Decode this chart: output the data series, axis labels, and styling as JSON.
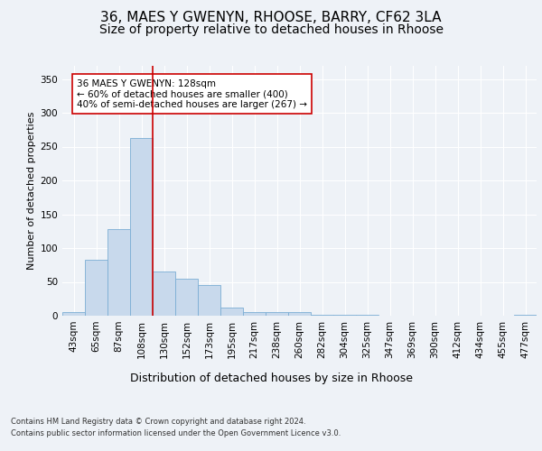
{
  "title1": "36, MAES Y GWENYN, RHOOSE, BARRY, CF62 3LA",
  "title2": "Size of property relative to detached houses in Rhoose",
  "xlabel": "Distribution of detached houses by size in Rhoose",
  "ylabel": "Number of detached properties",
  "footnote1": "Contains HM Land Registry data © Crown copyright and database right 2024.",
  "footnote2": "Contains public sector information licensed under the Open Government Licence v3.0.",
  "categories": [
    "43sqm",
    "65sqm",
    "87sqm",
    "108sqm",
    "130sqm",
    "152sqm",
    "173sqm",
    "195sqm",
    "217sqm",
    "238sqm",
    "260sqm",
    "282sqm",
    "304sqm",
    "325sqm",
    "347sqm",
    "369sqm",
    "390sqm",
    "412sqm",
    "434sqm",
    "455sqm",
    "477sqm"
  ],
  "values": [
    5,
    83,
    128,
    263,
    65,
    55,
    45,
    12,
    6,
    5,
    5,
    1,
    1,
    1,
    0,
    0,
    0,
    0,
    0,
    0,
    2
  ],
  "bar_color": "#c8d9ec",
  "bar_edge_color": "#7badd4",
  "vline_color": "#cc0000",
  "annotation_text": "36 MAES Y GWENYN: 128sqm\n← 60% of detached houses are smaller (400)\n40% of semi-detached houses are larger (267) →",
  "annotation_box_color": "white",
  "annotation_box_edge": "#cc0000",
  "ylim": [
    0,
    370
  ],
  "yticks": [
    0,
    50,
    100,
    150,
    200,
    250,
    300,
    350
  ],
  "background_color": "#eef2f7",
  "plot_background": "#eef2f7",
  "grid_color": "white",
  "title1_fontsize": 11,
  "title2_fontsize": 10,
  "xlabel_fontsize": 9,
  "ylabel_fontsize": 8,
  "tick_fontsize": 7.5,
  "footnote_fontsize": 6,
  "annotation_fontsize": 7.5
}
